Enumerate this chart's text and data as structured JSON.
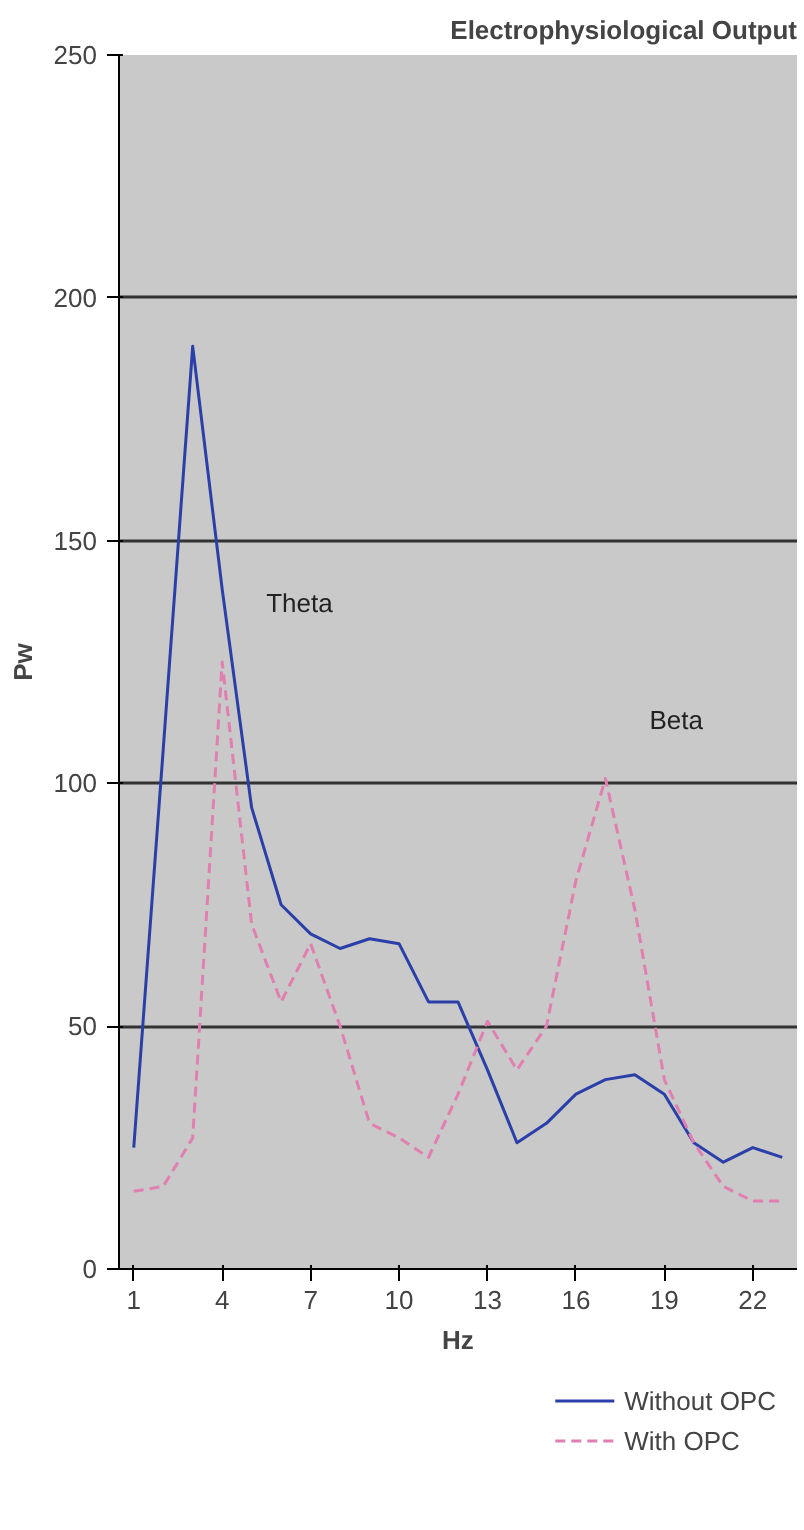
{
  "chart_data": {
    "type": "line",
    "title": "Electrophysiological Output",
    "xlabel": "Hz",
    "ylabel": "Pw",
    "x": [
      1,
      2,
      3,
      4,
      5,
      6,
      7,
      8,
      9,
      10,
      11,
      12,
      13,
      14,
      15,
      16,
      17,
      18,
      19,
      20,
      21,
      22,
      23
    ],
    "series": [
      {
        "name": "Without OPC",
        "color": "#2b3fa8",
        "line_style": "solid",
        "values": [
          25,
          107,
          190,
          140,
          95,
          75,
          69,
          66,
          68,
          67,
          55,
          55,
          41,
          26,
          30,
          36,
          39,
          40,
          36,
          26,
          22,
          25,
          23
        ]
      },
      {
        "name": "With OPC",
        "color": "#e07fb0",
        "line_style": "dashed",
        "values": [
          16,
          17,
          27,
          125,
          71,
          55,
          67,
          50,
          30,
          27,
          23,
          36,
          51,
          41,
          50,
          80,
          101,
          74,
          39,
          26,
          17,
          14,
          14
        ]
      }
    ],
    "annotations": [
      {
        "text": "Theta",
        "x": 4,
        "y": 125
      },
      {
        "text": "Beta",
        "x": 17,
        "y": 101
      }
    ],
    "xlim": [
      0.5,
      23.5
    ],
    "xticks": [
      1,
      4,
      7,
      10,
      13,
      16,
      19,
      22
    ],
    "ylim": [
      0,
      250
    ],
    "yticks": [
      0,
      50,
      100,
      150,
      200,
      250
    ],
    "grid": "y",
    "legend": "bottom right",
    "marker": "none"
  }
}
